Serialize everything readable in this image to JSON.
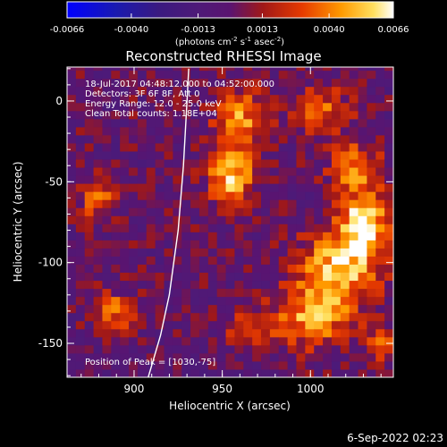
{
  "chart_data": {
    "type": "heatmap",
    "title": "Reconstructed RHESSI Image",
    "xlabel": "Heliocentric X (arcsec)",
    "ylabel": "Heliocentric Y (arcsec)",
    "xlim": [
      862,
      1047
    ],
    "ylim": [
      -171,
      21
    ],
    "xticks": [
      900,
      950,
      1000
    ],
    "yticks": [
      0,
      -50,
      -100,
      -150
    ],
    "colorbar": {
      "range": [
        -0.0066,
        0.0066
      ],
      "ticks": [
        "-0.0066",
        "-0.0040",
        "-0.0013",
        "0.0013",
        "0.0040",
        "0.0066"
      ],
      "label": "(photons cm",
      "label_parts": [
        "(photons cm",
        "-2",
        " s",
        "-1",
        " asec",
        "-2",
        ")"
      ]
    },
    "annotations": [
      "18-Jul-2017 04:48:12.000 to 04:52:00.000",
      "Detectors: 3F 6F 8F, Att 0",
      "Energy Range: 12.0 - 25.0 keV",
      "Clean     Total counts: 1.18E+04"
    ],
    "peak_label": "Position of Peak = [1030,-75]",
    "peak": [
      1030,
      -75
    ],
    "limb_curve": [
      [
        931,
        20
      ],
      [
        930,
        0
      ],
      [
        928,
        -40
      ],
      [
        925,
        -80
      ],
      [
        920,
        -120
      ],
      [
        915,
        -145
      ],
      [
        908,
        -171
      ]
    ],
    "blobs": [
      {
        "x": 1030,
        "y": -75,
        "sx": 10,
        "sy": 14,
        "amp": 0.0066
      },
      {
        "x": 1015,
        "y": -105,
        "sx": 16,
        "sy": 16,
        "amp": 0.0056
      },
      {
        "x": 1000,
        "y": -135,
        "sx": 14,
        "sy": 12,
        "amp": 0.0046
      },
      {
        "x": 955,
        "y": -45,
        "sx": 9,
        "sy": 14,
        "amp": 0.0056
      },
      {
        "x": 960,
        "y": -10,
        "sx": 10,
        "sy": 12,
        "amp": 0.0042
      },
      {
        "x": 1005,
        "y": -5,
        "sx": 12,
        "sy": 10,
        "amp": 0.0034
      },
      {
        "x": 1025,
        "y": -40,
        "sx": 10,
        "sy": 10,
        "amp": 0.004
      },
      {
        "x": 965,
        "y": -140,
        "sx": 9,
        "sy": 9,
        "amp": 0.003
      },
      {
        "x": 880,
        "y": -60,
        "sx": 8,
        "sy": 8,
        "amp": 0.004
      },
      {
        "x": 890,
        "y": -130,
        "sx": 8,
        "sy": 9,
        "amp": 0.0034
      },
      {
        "x": 1040,
        "y": -150,
        "sx": 8,
        "sy": 8,
        "amp": 0.0026
      }
    ]
  },
  "timestamp": "6-Sep-2022 02:23"
}
